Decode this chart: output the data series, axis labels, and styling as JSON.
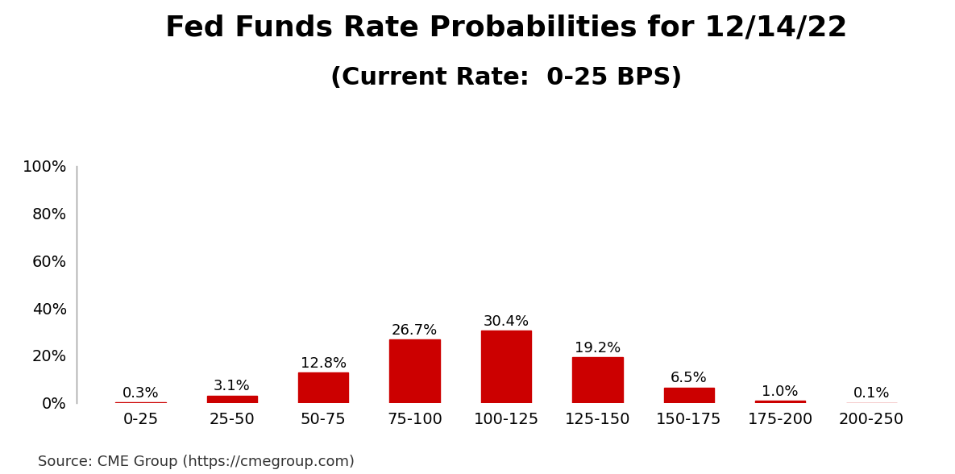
{
  "title_line1": "Fed Funds Rate Probabilities for 12/14/22",
  "title_line2": "(Current Rate:  0-25 BPS)",
  "categories": [
    "0-25",
    "25-50",
    "50-75",
    "75-100",
    "100-125",
    "125-150",
    "150-175",
    "175-200",
    "200-250"
  ],
  "values": [
    0.3,
    3.1,
    12.8,
    26.7,
    30.4,
    19.2,
    6.5,
    1.0,
    0.1
  ],
  "bar_color": "#CC0000",
  "bar_edge_color": "#CC0000",
  "background_color": "#FFFFFF",
  "title_fontsize": 26,
  "subtitle_fontsize": 22,
  "label_fontsize": 13,
  "tick_fontsize": 14,
  "source_text": "Source: CME Group (https://cmegroup.com)",
  "source_fontsize": 13,
  "ylim": [
    0,
    100
  ],
  "yticks": [
    0,
    20,
    40,
    60,
    80,
    100
  ]
}
